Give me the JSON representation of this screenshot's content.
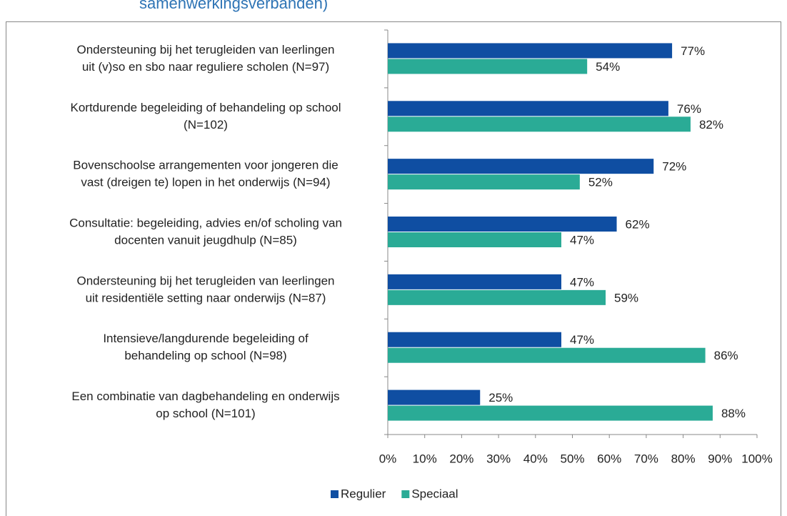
{
  "chart_data": {
    "type": "hbar",
    "title": "samenwerkingsverbanden)",
    "categories": [
      [
        "Ondersteuning bij het terugleiden van leerlingen",
        "uit (v)so en sbo naar reguliere scholen (N=97)"
      ],
      [
        "Kortdurende begeleiding of behandeling op school",
        "(N=102)"
      ],
      [
        "Bovenschoolse arrangementen voor jongeren die",
        "vast (dreigen te) lopen in het onderwijs (N=94)"
      ],
      [
        "Consultatie: begeleiding, advies en/of scholing van",
        "docenten vanuit jeugdhulp (N=85)"
      ],
      [
        "Ondersteuning bij het terugleiden van leerlingen",
        "uit residentiële setting naar onderwijs (N=87)"
      ],
      [
        "Intensieve/langdurende begeleiding of",
        "behandeling op school (N=98)"
      ],
      [
        "Een combinatie van dagbehandeling en onderwijs",
        "op school (N=101)"
      ]
    ],
    "series": [
      {
        "name": "Regulier",
        "color": "#0f4ea2",
        "values": [
          77,
          76,
          72,
          62,
          47,
          47,
          25
        ],
        "value_labels": [
          "77%",
          "76%",
          "72%",
          "62%",
          "47%",
          "47%",
          "25%"
        ]
      },
      {
        "name": "Speciaal",
        "color": "#2aab96",
        "values": [
          54,
          82,
          52,
          47,
          59,
          86,
          88
        ],
        "value_labels": [
          "54%",
          "82%",
          "52%",
          "47%",
          "59%",
          "86%",
          "88%"
        ]
      }
    ],
    "xlim": [
      0,
      100
    ],
    "xticks": [
      {
        "value": 0,
        "label": "0%"
      },
      {
        "value": 10,
        "label": "10%"
      },
      {
        "value": 20,
        "label": "20%"
      },
      {
        "value": 30,
        "label": "30%"
      },
      {
        "value": 40,
        "label": "40%"
      },
      {
        "value": 50,
        "label": "50%"
      },
      {
        "value": 60,
        "label": "60%"
      },
      {
        "value": 70,
        "label": "70%"
      },
      {
        "value": 80,
        "label": "80%"
      },
      {
        "value": 90,
        "label": "90%"
      },
      {
        "value": 100,
        "label": "100%"
      }
    ],
    "legend": "bottom"
  }
}
